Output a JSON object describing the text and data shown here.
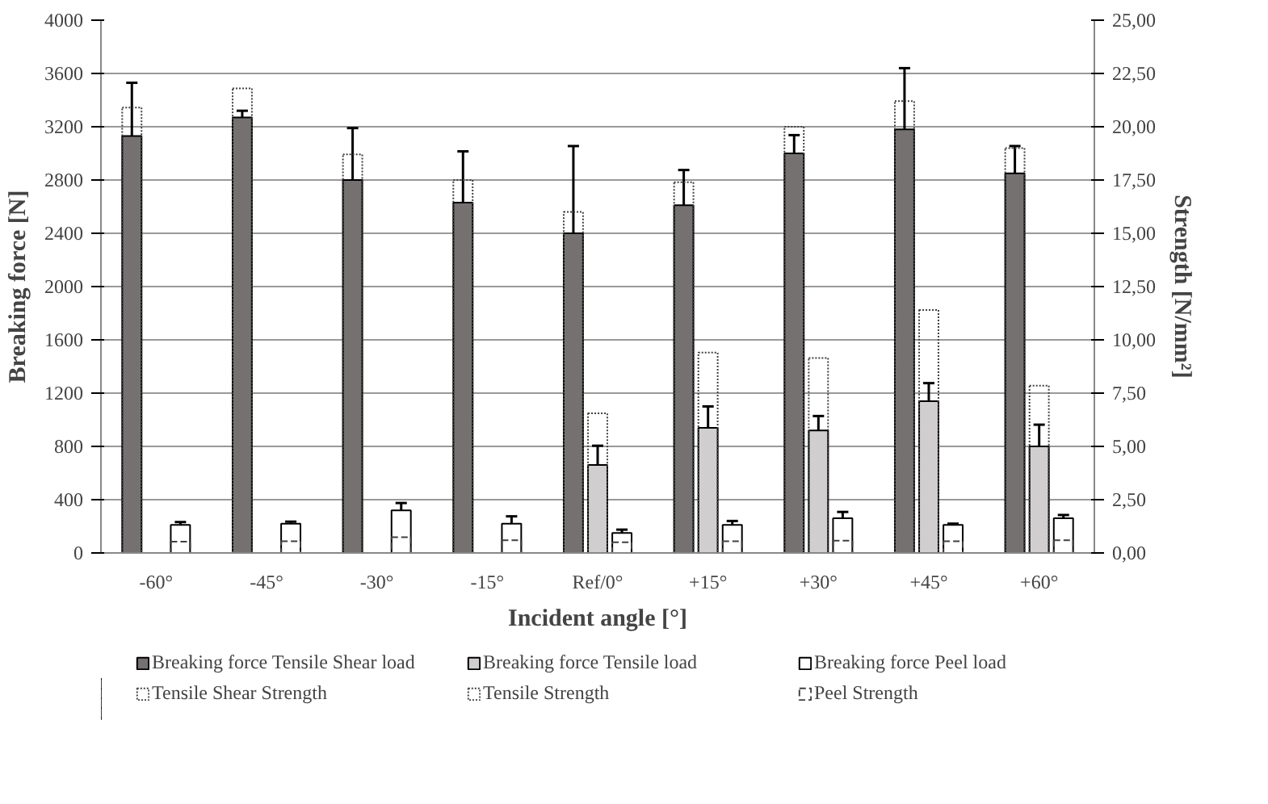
{
  "chart_data": {
    "type": "bar",
    "xlabel": "Incident angle [°]",
    "ylabel": "Breaking force [N]",
    "y2label": "Strength [N/mm²]",
    "categories": [
      "-60°",
      "-45°",
      "-30°",
      "-15°",
      "Ref/0°",
      "+15°",
      "+30°",
      "+45°",
      "+60°"
    ],
    "ylim": [
      0,
      4000
    ],
    "yticks": [
      0,
      400,
      800,
      1200,
      1600,
      2000,
      2400,
      2800,
      3200,
      3600,
      4000
    ],
    "y2lim": [
      0,
      25
    ],
    "y2ticks": [
      {
        "value": 0,
        "label": "0,00"
      },
      {
        "value": 2.5,
        "label": "2,50"
      },
      {
        "value": 5,
        "label": "5,00"
      },
      {
        "value": 7.5,
        "label": "7,50"
      },
      {
        "value": 10,
        "label": "10,00"
      },
      {
        "value": 12.5,
        "label": "12,50"
      },
      {
        "value": 15,
        "label": "15,00"
      },
      {
        "value": 17.5,
        "label": "17,50"
      },
      {
        "value": 20,
        "label": "20,00"
      },
      {
        "value": 22.5,
        "label": "22,50"
      },
      {
        "value": 25,
        "label": "25,00"
      }
    ],
    "grid": "y",
    "legend": "bottom",
    "series": [
      {
        "name": "Breaking force Tensile Shear load",
        "color": "#767171",
        "values": [
          3130,
          3270,
          2800,
          2630,
          2400,
          2610,
          3000,
          3180,
          2850
        ],
        "errors": [
          400,
          50,
          390,
          385,
          655,
          265,
          137,
          460,
          205
        ]
      },
      {
        "name": "Breaking force Tensile load",
        "color": "#d0cece",
        "values": [
          null,
          null,
          null,
          null,
          660,
          940,
          920,
          1140,
          800
        ],
        "errors": [
          null,
          null,
          null,
          null,
          145,
          160,
          108,
          135,
          163
        ]
      },
      {
        "name": "Breaking force Peel load",
        "color": "#ffffff",
        "values": [
          210,
          220,
          320,
          220,
          150,
          210,
          260,
          210,
          260
        ],
        "errors": [
          22,
          15,
          55,
          55,
          25,
          30,
          48,
          10,
          25
        ]
      },
      {
        "name": "Tensile Shear Strength",
        "color": "#404040",
        "axis": "y2",
        "line_style": "dotted",
        "values": [
          20.9,
          21.8,
          18.7,
          17.5,
          16.0,
          17.4,
          20.0,
          21.2,
          19.0
        ]
      },
      {
        "name": "Tensile Strength",
        "color": "#404040",
        "axis": "y2",
        "line_style": "dotted",
        "values": [
          null,
          null,
          null,
          null,
          6.55,
          9.4,
          9.15,
          11.4,
          7.85
        ]
      },
      {
        "name": "Peel Strength",
        "color": "#404040",
        "axis": "y2",
        "line_style": "dashed",
        "values": [
          0.53,
          0.55,
          0.74,
          0.6,
          0.5,
          0.55,
          0.58,
          0.55,
          0.6
        ]
      }
    ]
  }
}
